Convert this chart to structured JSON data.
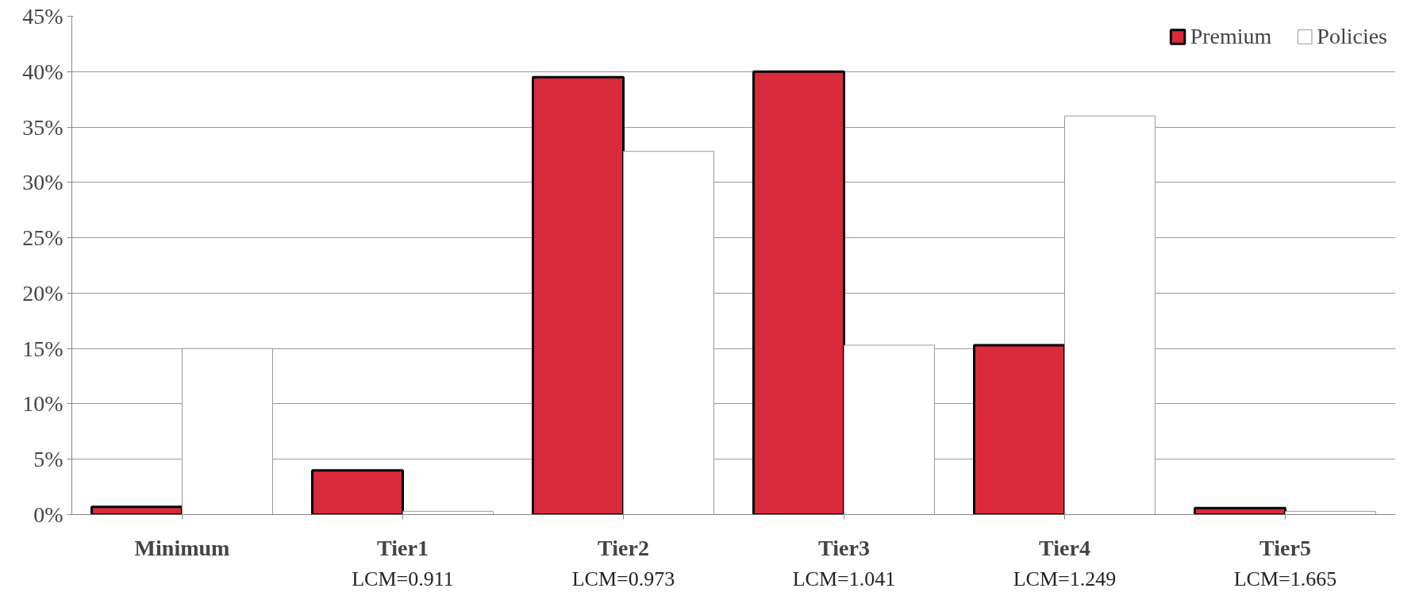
{
  "chart_data": {
    "type": "bar",
    "categories": [
      "Minimum",
      "Tier1",
      "Tier2",
      "Tier3",
      "Tier4",
      "Tier5"
    ],
    "series": [
      {
        "name": "Premium",
        "color": "#d92b3c",
        "values": [
          0.7,
          4.0,
          39.5,
          40.0,
          15.3,
          0.6
        ]
      },
      {
        "name": "Policies",
        "color": "#ffffff",
        "values": [
          15.0,
          0.3,
          32.8,
          15.3,
          36.0,
          0.3
        ]
      }
    ],
    "ylim": [
      0,
      45
    ],
    "yticks": [
      {
        "value": 0,
        "label": "0%"
      },
      {
        "value": 5,
        "label": "5%"
      },
      {
        "value": 10,
        "label": "10%"
      },
      {
        "value": 15,
        "label": "15%"
      },
      {
        "value": 20,
        "label": "20%"
      },
      {
        "value": 25,
        "label": "25%"
      },
      {
        "value": 30,
        "label": "30%"
      },
      {
        "value": 35,
        "label": "35%"
      },
      {
        "value": 40,
        "label": "40%"
      },
      {
        "value": 45,
        "label": "45%"
      }
    ],
    "annotations": [
      "LCM=0.911",
      "LCM=0.973",
      "LCM=1.041",
      "LCM=1.249",
      "LCM=1.665"
    ],
    "grid": "y",
    "legend": "top right"
  }
}
